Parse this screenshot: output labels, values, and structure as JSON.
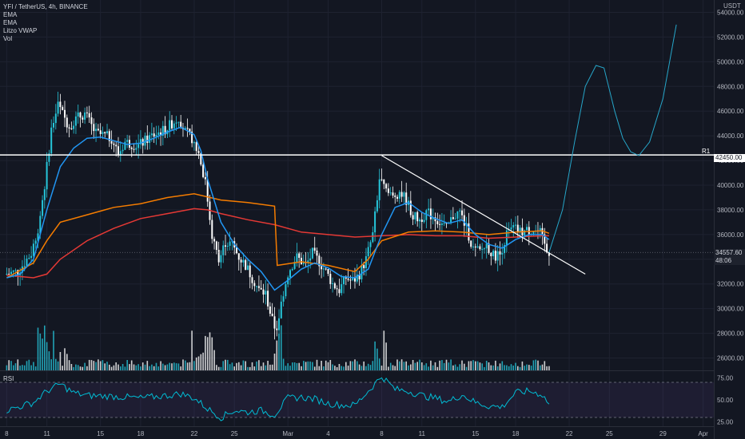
{
  "legend": {
    "symbol": "YFI / TetherUS, 4h, BINANCE",
    "ind1": "EMA",
    "ind2": "EMA",
    "ind3": "Litzo VWAP",
    "ind4": "Vol"
  },
  "rsi_label": "RSI",
  "price_badge": {
    "price": "34557.60",
    "countdown": "48:06"
  },
  "r1": {
    "label": "R1",
    "price": "42450.00"
  },
  "colors": {
    "bg": "#131722",
    "up": "#26c6da",
    "down": "#ffffff",
    "ema_fast": "#2196f3",
    "ema_slow": "#f57c00",
    "vwap": "#e53935",
    "projection": "#26a6c9",
    "rsi": "#00bcd4"
  },
  "chart_data": {
    "type": "candlestick",
    "currency": "USDT",
    "ylim": [
      25000,
      55000
    ],
    "y_ticks": [
      26000,
      28000,
      30000,
      32000,
      34000,
      36000,
      38000,
      40000,
      42000,
      44000,
      46000,
      48000,
      50000,
      52000,
      54000
    ],
    "y_tick_labels": [
      "26000.00",
      "28000.00",
      "30000.00",
      "32000.00",
      "34000.00",
      "36000.00",
      "38000.00",
      "40000.00",
      "42000.00",
      "44000.00",
      "46000.00",
      "48000.00",
      "50000.00",
      "52000.00",
      "54000.00"
    ],
    "x_ticks": [
      {
        "label": "8",
        "day": 0
      },
      {
        "label": "11",
        "day": 3
      },
      {
        "label": "15",
        "day": 7
      },
      {
        "label": "18",
        "day": 10
      },
      {
        "label": "22",
        "day": 14
      },
      {
        "label": "25",
        "day": 17
      },
      {
        "label": "Mar",
        "day": 21
      },
      {
        "label": "4",
        "day": 24
      },
      {
        "label": "8",
        "day": 28
      },
      {
        "label": "11",
        "day": 31
      },
      {
        "label": "15",
        "day": 35
      },
      {
        "label": "18",
        "day": 38
      },
      {
        "label": "22",
        "day": 42
      },
      {
        "label": "25",
        "day": 45
      },
      {
        "label": "29",
        "day": 49
      },
      {
        "label": "Apr",
        "day": 52
      }
    ],
    "xlim": [
      -0.5,
      52.8
    ],
    "price_path": [
      [
        0,
        32800
      ],
      [
        1,
        33000
      ],
      [
        2,
        34500
      ],
      [
        2.5,
        36500
      ],
      [
        3,
        40000
      ],
      [
        3.5,
        44500
      ],
      [
        4,
        46500
      ],
      [
        4.8,
        44800
      ],
      [
        5.5,
        45500
      ],
      [
        6,
        45800
      ],
      [
        6.8,
        44200
      ],
      [
        7.5,
        44000
      ],
      [
        8,
        43800
      ],
      [
        8.5,
        42500
      ],
      [
        9,
        43500
      ],
      [
        10,
        43200
      ],
      [
        11,
        44000
      ],
      [
        12,
        44500
      ],
      [
        13,
        45500
      ],
      [
        13.5,
        44300
      ],
      [
        14,
        43800
      ],
      [
        14.5,
        42600
      ],
      [
        15,
        40200
      ],
      [
        15.5,
        36000
      ],
      [
        16,
        33800
      ],
      [
        16.5,
        35400
      ],
      [
        17,
        35200
      ],
      [
        17.5,
        34200
      ],
      [
        18,
        33500
      ],
      [
        18.5,
        32500
      ],
      [
        19,
        31500
      ],
      [
        19.5,
        31200
      ],
      [
        20,
        29000
      ],
      [
        20.3,
        28200
      ],
      [
        20.8,
        31200
      ],
      [
        21.2,
        33000
      ],
      [
        21.8,
        34200
      ],
      [
        22.5,
        33500
      ],
      [
        23,
        34500
      ],
      [
        23.5,
        33800
      ],
      [
        24,
        33000
      ],
      [
        24.5,
        32000
      ],
      [
        25,
        31500
      ],
      [
        25.5,
        32500
      ],
      [
        26,
        32200
      ],
      [
        26.5,
        32800
      ],
      [
        27,
        34000
      ],
      [
        27.5,
        36000
      ],
      [
        28,
        40500
      ],
      [
        28.5,
        39500
      ],
      [
        29,
        39000
      ],
      [
        29.5,
        39500
      ],
      [
        30,
        38800
      ],
      [
        30.5,
        37500
      ],
      [
        31,
        37200
      ],
      [
        31.5,
        37800
      ],
      [
        32,
        37500
      ],
      [
        32.5,
        37000
      ],
      [
        33,
        36500
      ],
      [
        33.5,
        37500
      ],
      [
        34,
        37800
      ],
      [
        34.5,
        36500
      ],
      [
        35,
        34800
      ],
      [
        35.5,
        34600
      ],
      [
        36,
        35200
      ],
      [
        36.5,
        34300
      ],
      [
        37,
        34400
      ],
      [
        37.5,
        36000
      ],
      [
        38,
        36500
      ],
      [
        38.5,
        36200
      ],
      [
        39,
        36300
      ],
      [
        39.5,
        36400
      ],
      [
        40,
        36100
      ],
      [
        40.5,
        34557.6
      ]
    ],
    "ema_fast": [
      [
        0,
        32500
      ],
      [
        1,
        32800
      ],
      [
        2,
        34000
      ],
      [
        3,
        38000
      ],
      [
        4,
        41500
      ],
      [
        5,
        43000
      ],
      [
        6,
        43800
      ],
      [
        7,
        43900
      ],
      [
        8,
        43600
      ],
      [
        9,
        43300
      ],
      [
        10,
        43400
      ],
      [
        11,
        43800
      ],
      [
        12,
        44300
      ],
      [
        13,
        44700
      ],
      [
        14,
        44100
      ],
      [
        14.5,
        42800
      ],
      [
        15,
        40500
      ],
      [
        16,
        37000
      ],
      [
        17,
        35200
      ],
      [
        18,
        34000
      ],
      [
        19,
        33000
      ],
      [
        20,
        31500
      ],
      [
        21,
        32300
      ],
      [
        22,
        33200
      ],
      [
        23,
        33700
      ],
      [
        24,
        33300
      ],
      [
        25,
        32600
      ],
      [
        26,
        32500
      ],
      [
        27,
        33200
      ],
      [
        28,
        36000
      ],
      [
        29,
        38200
      ],
      [
        30,
        38600
      ],
      [
        31,
        37800
      ],
      [
        32,
        37300
      ],
      [
        33,
        36900
      ],
      [
        34,
        37200
      ],
      [
        35,
        36000
      ],
      [
        36,
        35200
      ],
      [
        37,
        34900
      ],
      [
        38,
        35600
      ],
      [
        39,
        36000
      ],
      [
        40,
        36000
      ],
      [
        40.5,
        35600
      ]
    ],
    "ema_slow": [
      [
        0,
        32500
      ],
      [
        2,
        33700
      ],
      [
        3,
        35500
      ],
      [
        4,
        37000
      ],
      [
        6,
        37600
      ],
      [
        8,
        38200
      ],
      [
        10,
        38500
      ],
      [
        12,
        39000
      ],
      [
        14,
        39300
      ],
      [
        16,
        38800
      ],
      [
        18,
        38600
      ],
      [
        20,
        38300
      ],
      [
        20.2,
        33500
      ],
      [
        22,
        33800
      ],
      [
        24,
        33500
      ],
      [
        26,
        33000
      ],
      [
        27,
        34000
      ],
      [
        28,
        35500
      ],
      [
        30,
        36200
      ],
      [
        32,
        36300
      ],
      [
        34,
        36200
      ],
      [
        36,
        36000
      ],
      [
        38,
        36200
      ],
      [
        40,
        36300
      ],
      [
        40.5,
        36100
      ]
    ],
    "vwap": [
      [
        0,
        32700
      ],
      [
        2,
        32500
      ],
      [
        3,
        32800
      ],
      [
        4,
        34000
      ],
      [
        6,
        35500
      ],
      [
        8,
        36500
      ],
      [
        10,
        37300
      ],
      [
        12,
        37700
      ],
      [
        14,
        38100
      ],
      [
        15,
        38000
      ],
      [
        16,
        37700
      ],
      [
        18,
        37200
      ],
      [
        20,
        36800
      ],
      [
        22,
        36200
      ],
      [
        24,
        36000
      ],
      [
        26,
        35800
      ],
      [
        28,
        35900
      ],
      [
        30,
        36000
      ],
      [
        32,
        35900
      ],
      [
        34,
        35900
      ],
      [
        36,
        35700
      ],
      [
        38,
        35800
      ],
      [
        40,
        35900
      ],
      [
        40.5,
        35900
      ]
    ],
    "trendline": [
      [
        28,
        42400
      ],
      [
        43.2,
        32800
      ]
    ],
    "projection": [
      [
        40.5,
        34557.6
      ],
      [
        41.5,
        38000
      ],
      [
        42.4,
        43500
      ],
      [
        43.2,
        48000
      ],
      [
        44,
        49700
      ],
      [
        44.6,
        49500
      ],
      [
        45.4,
        46000
      ],
      [
        46,
        43800
      ],
      [
        46.6,
        42700
      ],
      [
        47.2,
        42400
      ],
      [
        48,
        43500
      ],
      [
        49,
        47000
      ],
      [
        50,
        53000
      ]
    ],
    "rsi": {
      "ylim": [
        20,
        80
      ],
      "bands": [
        30,
        70
      ],
      "y_ticks": [
        25,
        50,
        75
      ],
      "y_tick_labels": [
        "25.00",
        "50.00",
        "75.00"
      ],
      "values": [
        [
          0,
          38
        ],
        [
          2,
          47
        ],
        [
          3,
          60
        ],
        [
          4,
          68
        ],
        [
          5,
          58
        ],
        [
          6,
          55
        ],
        [
          8,
          54
        ],
        [
          10,
          52
        ],
        [
          12,
          55
        ],
        [
          13,
          57
        ],
        [
          14,
          52
        ],
        [
          15,
          40
        ],
        [
          16,
          30
        ],
        [
          17,
          38
        ],
        [
          18,
          36
        ],
        [
          19,
          38
        ],
        [
          20,
          33
        ],
        [
          21,
          52
        ],
        [
          22,
          53
        ],
        [
          23,
          51
        ],
        [
          24,
          46
        ],
        [
          25,
          44
        ],
        [
          26,
          44
        ],
        [
          27,
          60
        ],
        [
          28,
          77
        ],
        [
          29,
          62
        ],
        [
          30,
          60
        ],
        [
          31,
          55
        ],
        [
          32,
          52
        ],
        [
          33,
          48
        ],
        [
          34,
          56
        ],
        [
          35,
          47
        ],
        [
          36,
          43
        ],
        [
          37,
          42
        ],
        [
          38,
          58
        ],
        [
          39,
          60
        ],
        [
          40,
          56
        ],
        [
          40.5,
          45
        ]
      ]
    }
  }
}
